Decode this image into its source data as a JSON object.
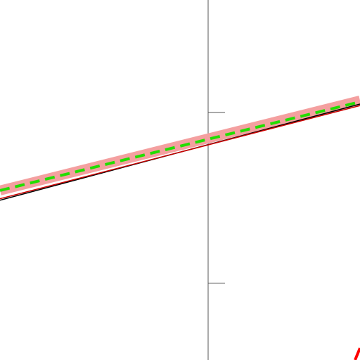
{
  "chart_data": {
    "type": "line",
    "xlim": [
      -1.218,
      0.889
    ],
    "ylim": [
      -0.449,
      1.658
    ],
    "yticks": [
      0,
      1
    ],
    "series": [
      {
        "color": "#f4a0a0",
        "width": 14,
        "dash": false,
        "x": [
          -1.218,
          0.889
        ],
        "values": [
          0.543,
          1.07
        ]
      },
      {
        "color": "#000000",
        "width": 1.5,
        "dash": false,
        "x": [
          -1.218,
          0.889
        ],
        "values": [
          0.486,
          1.049
        ]
      },
      {
        "color": "#cc0000",
        "width": 1.5,
        "dash": false,
        "x": [
          -1.218,
          0.889
        ],
        "values": [
          0.495,
          1.04
        ]
      },
      {
        "color": "#22dd00",
        "width": 4,
        "dash": true,
        "x": [
          -1.218,
          0.889
        ],
        "values": [
          0.543,
          1.062
        ]
      },
      {
        "color": "#ff0000",
        "width": 4,
        "dash": false,
        "x": [
          0.86,
          0.889
        ],
        "values": [
          -0.449,
          -0.379
        ]
      }
    ]
  }
}
